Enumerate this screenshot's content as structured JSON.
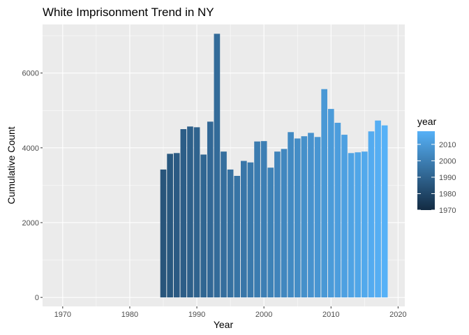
{
  "chart_data": {
    "type": "bar",
    "title": "White Imprisonment Trend in NY",
    "xlabel": "Year",
    "ylabel": "Cumulative Count",
    "xlim": [
      1967,
      2021
    ],
    "ylim": [
      -240,
      7300
    ],
    "x_ticks": [
      1970,
      1980,
      1990,
      2000,
      2010,
      2020
    ],
    "y_ticks": [
      0,
      2000,
      4000,
      6000
    ],
    "grid": true,
    "legend": {
      "title": "year",
      "position": "right",
      "ticks": [
        1970,
        1980,
        1990,
        2000,
        2010
      ],
      "range": [
        1970,
        2018
      ],
      "low_color": "#132b43",
      "high_color": "#56b1f7"
    },
    "background_color": "#ebebeb",
    "grid_color": "#ffffff",
    "x": [
      1985,
      1986,
      1987,
      1988,
      1989,
      1990,
      1991,
      1992,
      1993,
      1994,
      1995,
      1996,
      1997,
      1998,
      1999,
      2000,
      2001,
      2002,
      2003,
      2004,
      2005,
      2006,
      2007,
      2008,
      2009,
      2010,
      2011,
      2012,
      2013,
      2014,
      2015,
      2016,
      2017,
      2018
    ],
    "values": [
      3420,
      3840,
      3860,
      4500,
      4570,
      4550,
      3820,
      4700,
      7050,
      3900,
      3420,
      3250,
      3650,
      3610,
      4170,
      4180,
      3470,
      3900,
      3970,
      4420,
      4250,
      4310,
      4400,
      4290,
      5570,
      5040,
      4670,
      4350,
      3860,
      3880,
      3900,
      4440,
      4730,
      4600
    ]
  }
}
